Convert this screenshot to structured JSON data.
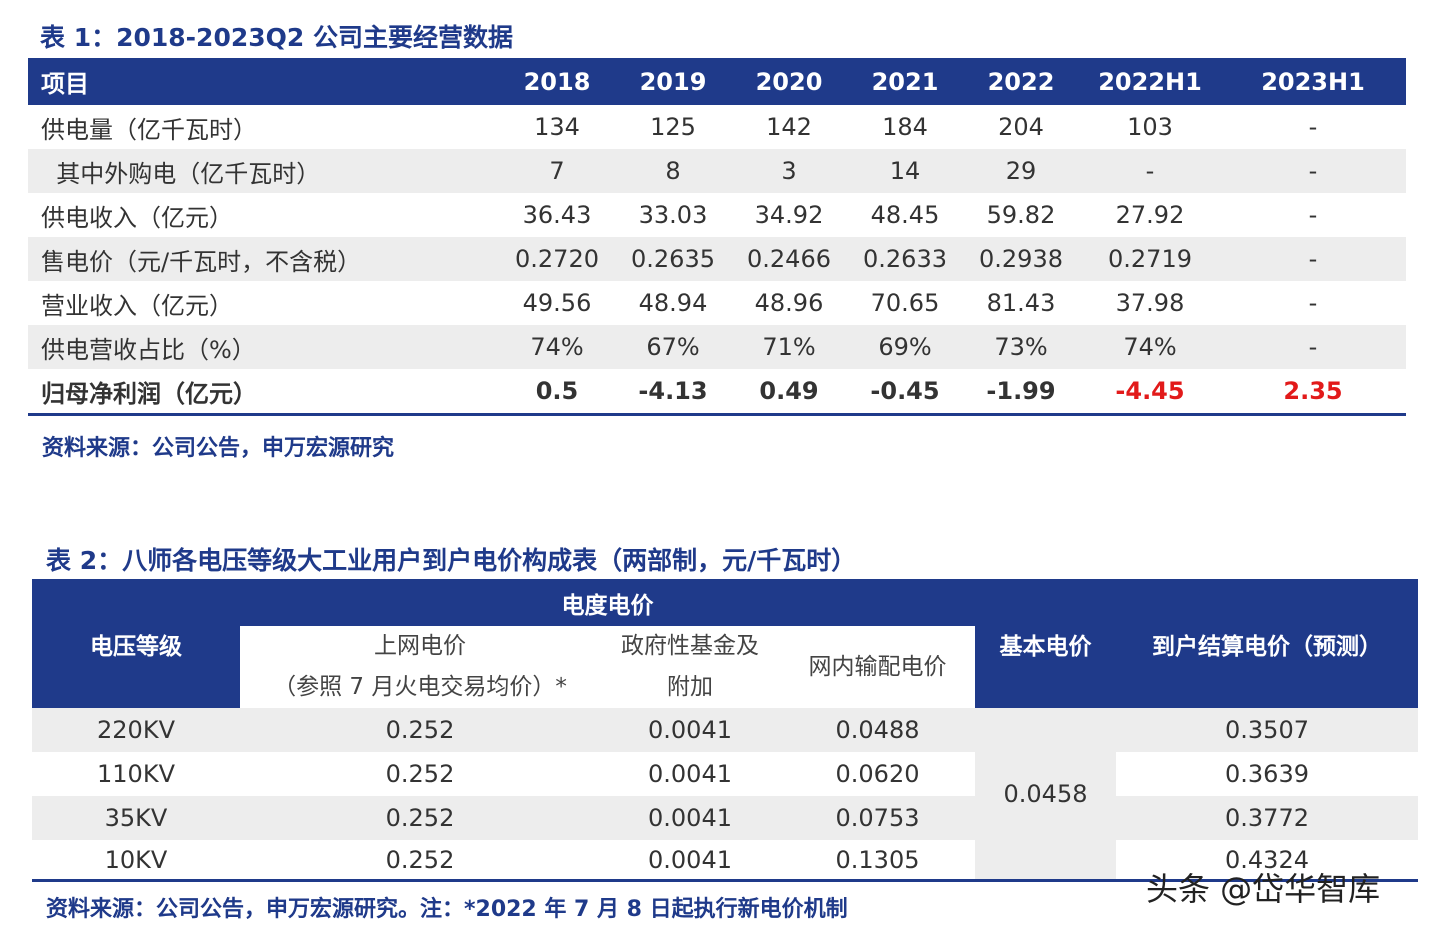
{
  "table1": {
    "title": "表 1：2018-2023Q2 公司主要经营数据",
    "header": [
      "项目",
      "2018",
      "2019",
      "2020",
      "2021",
      "2022",
      "2022H1",
      "2023H1"
    ],
    "rows": [
      {
        "label": "供电量（亿千瓦时）",
        "values": [
          "134",
          "125",
          "142",
          "184",
          "204",
          "103",
          "-"
        ]
      },
      {
        "label": "  其中外购电（亿千瓦时）",
        "values": [
          "7",
          "8",
          "3",
          "14",
          "29",
          "-",
          "-"
        ]
      },
      {
        "label": "供电收入（亿元）",
        "values": [
          "36.43",
          "33.03",
          "34.92",
          "48.45",
          "59.82",
          "27.92",
          "-"
        ]
      },
      {
        "label": "售电价（元/千瓦时，不含税）",
        "values": [
          "0.2720",
          "0.2635",
          "0.2466",
          "0.2633",
          "0.2938",
          "0.2719",
          "-"
        ]
      },
      {
        "label": "营业收入（亿元）",
        "values": [
          "49.56",
          "48.94",
          "48.96",
          "70.65",
          "81.43",
          "37.98",
          "-"
        ]
      },
      {
        "label": "供电营收占比（%）",
        "values": [
          "74%",
          "67%",
          "71%",
          "69%",
          "73%",
          "74%",
          "-"
        ]
      },
      {
        "label": "归母净利润（亿元）",
        "values": [
          "0.5",
          "-4.13",
          "0.49",
          "-0.45",
          "-1.99",
          "-4.45",
          "2.35"
        ]
      }
    ],
    "source": "资料来源：公司公告，申万宏源研究",
    "highlight_color": "#e21a1a"
  },
  "table2": {
    "title": "表 2：八师各电压等级大工业用户到户电价构成表（两部制，元/千瓦时）",
    "header": {
      "voltage": "电压等级",
      "energy_price": "电度电价",
      "grid_price_line1": "上网电价",
      "grid_price_line2": "（参照 7 月火电交易均价）*",
      "fund_line1": "政府性基金及",
      "fund_line2": "附加",
      "transmission": "网内输配电价",
      "basic": "基本电价",
      "final": "到户结算电价（预测）"
    },
    "rows": [
      {
        "voltage": "220KV",
        "grid": "0.252",
        "fund": "0.0041",
        "transmission": "0.0488",
        "final": "0.3507"
      },
      {
        "voltage": "110KV",
        "grid": "0.252",
        "fund": "0.0041",
        "transmission": "0.0620",
        "final": "0.3639"
      },
      {
        "voltage": "35KV",
        "grid": "0.252",
        "fund": "0.0041",
        "transmission": "0.0753",
        "final": "0.3772"
      },
      {
        "voltage": "10KV",
        "grid": "0.252",
        "fund": "0.0041",
        "transmission": "0.1305",
        "final": "0.4324"
      }
    ],
    "basic_price": "0.0458",
    "source": "资料来源：公司公告，申万宏源研究。注：*2022 年 7 月 8 日起执行新电价机制"
  },
  "watermark": "头条 @岱华智库",
  "colors": {
    "accent": "#1f3a8a",
    "shade": "#ededed"
  }
}
